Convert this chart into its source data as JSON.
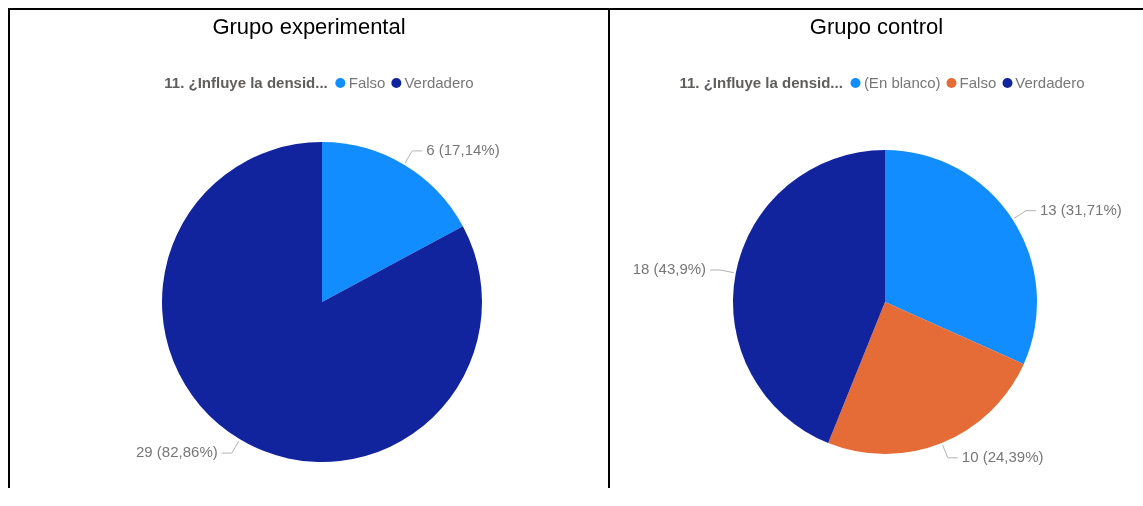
{
  "chart_data": [
    {
      "type": "pie",
      "title": "Grupo experimental",
      "legend_title": "11. ¿Influye la densid...",
      "legend": "top",
      "categories": [
        "Falso",
        "Verdadero"
      ],
      "values": [
        6,
        29
      ],
      "colors": [
        "#118dff",
        "#12239e"
      ],
      "value_labels": [
        "6 (17,14%)",
        "29 (82,86%)"
      ]
    },
    {
      "type": "pie",
      "title": "Grupo control",
      "legend_title": "11. ¿Influye la densid...",
      "legend": "top",
      "categories": [
        "(En blanco)",
        "Falso",
        "Verdadero"
      ],
      "values": [
        13,
        10,
        18
      ],
      "colors": [
        "#118dff",
        "#e66c37",
        "#12239e"
      ],
      "value_labels": [
        "13 (31,71%)",
        "10 (24,39%)",
        "18 (43,9%)"
      ]
    }
  ]
}
